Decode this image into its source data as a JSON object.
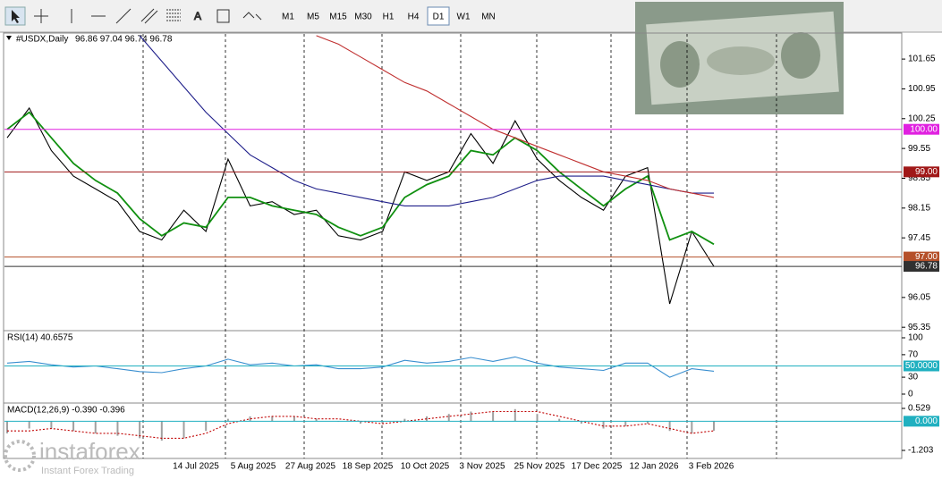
{
  "toolbar": {
    "timeframes": [
      "M1",
      "M5",
      "M15",
      "M30",
      "H1",
      "H4",
      "D1",
      "W1",
      "MN"
    ],
    "active": "D1"
  },
  "logo": {
    "brand": "instaforex",
    "tagline": "Instant Forex Trading"
  },
  "time_axis": {
    "labels": [
      "14 Jul 2025",
      "5 Aug 2025",
      "27 Aug 2025",
      "18 Sep 2025",
      "10 Oct 2025",
      "3 Nov 2025",
      "25 Nov 2025",
      "17 Dec 2025",
      "12 Jan 2026",
      "3 Feb 2026"
    ]
  },
  "chart_data": [
    {
      "type": "line",
      "title": "#USDX,Daily",
      "subtitle": "96.86 97.04 96.74 96.78",
      "ylim": [
        95.27,
        102.24
      ],
      "yticks": [
        101.65,
        100.95,
        100.25,
        99.55,
        98.85,
        98.15,
        97.45,
        96.05,
        95.35
      ],
      "levels": [
        {
          "value": 100,
          "label": "100.00",
          "color": "#e020e0"
        },
        {
          "value": 99,
          "label": "99.00",
          "color": "#a01818"
        },
        {
          "value": 97,
          "label": "97.00",
          "color": "#b5502a"
        },
        {
          "value": 96.78,
          "label": "96.78",
          "color": "#303030"
        }
      ],
      "series": [
        {
          "color": "#000000",
          "values": [
            99.8,
            100.5,
            99.5,
            98.9,
            98.6,
            98.3,
            97.6,
            97.4,
            98.1,
            97.6,
            99.3,
            98.2,
            98.3,
            98.0,
            98.1,
            97.5,
            97.4,
            97.6,
            99.0,
            98.8,
            99.0,
            99.9,
            99.2,
            100.2,
            99.3,
            98.8,
            98.4,
            98.1,
            98.9,
            99.1,
            95.9,
            97.6,
            96.78
          ]
        },
        {
          "color": "#109010",
          "values": [
            100.0,
            100.4,
            99.8,
            99.2,
            98.8,
            98.5,
            97.9,
            97.5,
            97.8,
            97.7,
            98.4,
            98.4,
            98.2,
            98.1,
            98.0,
            97.7,
            97.5,
            97.7,
            98.4,
            98.7,
            98.9,
            99.5,
            99.4,
            99.8,
            99.5,
            99.0,
            98.6,
            98.2,
            98.6,
            98.9,
            97.4,
            97.6,
            97.3
          ]
        },
        {
          "color": "#1f1f8a",
          "values": [
            null,
            null,
            null,
            null,
            null,
            null,
            102.2,
            101.6,
            101.0,
            100.4,
            99.9,
            99.4,
            99.1,
            98.8,
            98.6,
            98.5,
            98.4,
            98.3,
            98.2,
            98.2,
            98.2,
            98.3,
            98.4,
            98.6,
            98.8,
            98.9,
            98.9,
            98.9,
            98.8,
            98.7,
            98.6,
            98.5,
            98.5
          ]
        },
        {
          "color": "#c03030",
          "values": [
            null,
            null,
            null,
            null,
            null,
            null,
            null,
            null,
            null,
            null,
            null,
            null,
            null,
            null,
            102.2,
            102.0,
            101.7,
            101.4,
            101.1,
            100.9,
            100.6,
            100.3,
            100.0,
            99.8,
            99.6,
            99.4,
            99.2,
            99.0,
            98.9,
            98.8,
            98.6,
            98.5,
            98.4
          ]
        }
      ]
    },
    {
      "type": "line",
      "title": "RSI(14) 40.6575",
      "ylim": [
        -14.3,
        109.5
      ],
      "yticks": [
        100,
        70,
        30,
        0
      ],
      "levels": [
        {
          "value": 50,
          "label": "50.0000",
          "color": "#20b0c0"
        }
      ],
      "series": [
        {
          "color": "#3a8fd0",
          "values": [
            55,
            58,
            52,
            48,
            50,
            45,
            40,
            38,
            45,
            50,
            62,
            52,
            55,
            50,
            52,
            45,
            45,
            48,
            60,
            55,
            58,
            65,
            58,
            66,
            55,
            48,
            45,
            42,
            55,
            55,
            30,
            45,
            40.6575
          ]
        }
      ]
    },
    {
      "type": "bar",
      "title": "MACD(12,26,9) -0.390 -0.396",
      "ylim": [
        -1.535,
        0.677
      ],
      "yticks": [
        0.529,
        -1.203
      ],
      "levels": [
        {
          "value": 0,
          "label": "0.000",
          "color": "#20b0c0"
        }
      ],
      "color": "#a0a0a0",
      "values": [
        -0.5,
        -0.3,
        -0.3,
        -0.4,
        -0.5,
        -0.6,
        -0.7,
        -0.8,
        -0.7,
        -0.4,
        0.1,
        0.2,
        0.2,
        0.2,
        0.1,
        0.0,
        -0.1,
        -0.1,
        0.1,
        0.2,
        0.3,
        0.4,
        0.4,
        0.5,
        0.3,
        0.1,
        -0.1,
        -0.3,
        -0.2,
        -0.1,
        -0.4,
        -0.5,
        -0.39
      ],
      "series": [
        {
          "color": "#c00000",
          "dash": true,
          "values": [
            -0.4,
            -0.4,
            -0.3,
            -0.4,
            -0.5,
            -0.5,
            -0.6,
            -0.7,
            -0.7,
            -0.5,
            -0.1,
            0.1,
            0.2,
            0.2,
            0.1,
            0.1,
            0.0,
            -0.1,
            0.0,
            0.1,
            0.2,
            0.3,
            0.4,
            0.4,
            0.4,
            0.2,
            0.0,
            -0.2,
            -0.2,
            -0.1,
            -0.3,
            -0.5,
            -0.396
          ]
        }
      ]
    }
  ]
}
